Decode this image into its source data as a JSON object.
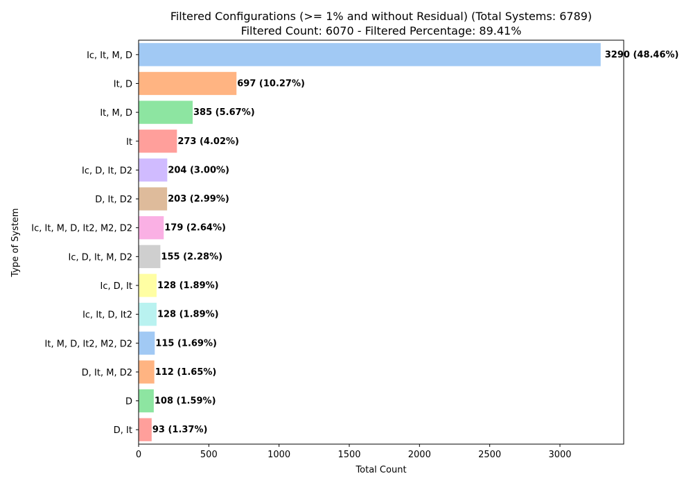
{
  "chart_data": {
    "type": "bar",
    "orientation": "horizontal",
    "title": "Filtered Configurations (>= 1% and without Residual) (Total Systems: 6789)",
    "subtitle": "Filtered Count: 6070 - Filtered Percentage: 89.41%",
    "xlabel": "Total Count",
    "ylabel": "Type of System",
    "xlim": [
      0,
      3454
    ],
    "xticks": [
      0,
      500,
      1000,
      1500,
      2000,
      2500,
      3000
    ],
    "grid": false,
    "categories": [
      "Ic, It, M, D",
      "It, D",
      "It, M, D",
      "It",
      "Ic, D, It, D2",
      "D, It, D2",
      "Ic, It, M, D, It2, M2, D2",
      "Ic, D, It, M, D2",
      "Ic, D, It",
      "Ic, It, D, It2",
      "It, M, D, It2, M2, D2",
      "D, It, M, D2",
      "D",
      "D, It"
    ],
    "values": [
      3290,
      697,
      385,
      273,
      204,
      203,
      179,
      155,
      128,
      128,
      115,
      112,
      108,
      93
    ],
    "data_labels": [
      "3290 (48.46%)",
      "697 (10.27%)",
      "385 (5.67%)",
      "273 (4.02%)",
      "204 (3.00%)",
      "203 (2.99%)",
      "179 (2.64%)",
      "155 (2.28%)",
      "128 (1.89%)",
      "128 (1.89%)",
      "115 (1.69%)",
      "112 (1.65%)",
      "108 (1.59%)",
      "93 (1.37%)"
    ],
    "colors": [
      "#a1c9f4",
      "#ffb482",
      "#8de5a1",
      "#ff9f9b",
      "#d0bbff",
      "#debb9b",
      "#fab0e4",
      "#cfcfcf",
      "#fffea3",
      "#b9f2f0",
      "#a1c9f4",
      "#ffb482",
      "#8de5a1",
      "#ff9f9b"
    ]
  }
}
